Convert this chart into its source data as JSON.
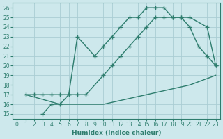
{
  "line1_x": [
    1,
    2,
    3,
    4,
    5,
    6,
    7,
    9,
    10,
    11,
    12,
    13,
    14,
    15,
    16,
    17,
    18,
    19,
    20,
    22,
    23
  ],
  "line1_y": [
    17,
    17,
    17,
    17,
    17,
    17,
    23,
    21,
    22,
    23,
    24,
    25,
    25,
    26,
    26,
    26,
    25,
    25,
    25,
    24,
    20
  ],
  "line2_x": [
    3,
    4,
    5,
    6,
    7,
    8,
    10,
    11,
    12,
    13,
    14,
    15,
    16,
    17,
    18,
    19,
    20,
    21,
    22,
    23
  ],
  "line2_y": [
    15,
    16,
    16,
    17,
    17,
    17,
    19,
    20,
    21,
    22,
    23,
    24,
    25,
    25,
    25,
    25,
    24,
    22,
    21,
    20
  ],
  "line3_x": [
    1,
    5,
    10,
    15,
    20,
    23
  ],
  "line3_y": [
    17,
    16,
    16,
    17,
    18,
    19
  ],
  "line_color": "#2e7d6e",
  "bg_color": "#cde8ec",
  "grid_color": "#aacdd4",
  "xlabel": "Humidex (Indice chaleur)",
  "xlim": [
    -0.5,
    23.5
  ],
  "ylim": [
    14.5,
    26.5
  ],
  "xticks": [
    0,
    1,
    2,
    3,
    4,
    5,
    6,
    7,
    8,
    9,
    10,
    11,
    12,
    13,
    14,
    15,
    16,
    17,
    18,
    19,
    20,
    21,
    22,
    23
  ],
  "yticks": [
    15,
    16,
    17,
    18,
    19,
    20,
    21,
    22,
    23,
    24,
    25,
    26
  ],
  "font_size": 6.5,
  "marker": "+",
  "marker_size": 4,
  "line_width": 1.0
}
